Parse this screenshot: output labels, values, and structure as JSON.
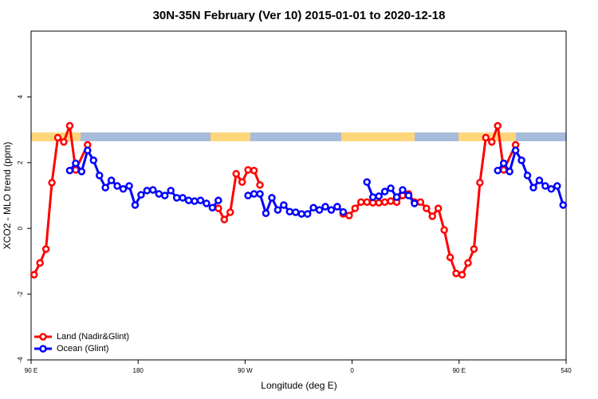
{
  "chart_data": {
    "type": "line",
    "title": "30N-35N February (Ver 10)   2015-01-01 to 2020-12-18",
    "x_label": "Longitude (deg E)",
    "y_label": "XCO2 - MLO trend (ppm)",
    "xlim": [
      90,
      540
    ],
    "ylim": [
      -4,
      6
    ],
    "xticks": [
      {
        "value": 90,
        "label": "90 E"
      },
      180,
      {
        "value": 270,
        "label": "90 W"
      },
      {
        "value": 360,
        "label": "0"
      },
      {
        "value": 450,
        "label": "90 E"
      },
      540
    ],
    "yticks": [
      -4,
      -2,
      0,
      2,
      4
    ],
    "legend": "bottom-left",
    "series": [
      {
        "name": "Land (Nadir&Glint)",
        "color": "#ff0000",
        "x": [
          92.5,
          97.5,
          102.5,
          107.5,
          112.5,
          117.5,
          122.5,
          127.5,
          137.5,
          142.5,
          247.5,
          252.5,
          257.5,
          262.5,
          267.5,
          272.5,
          277.5,
          282.5,
          287.5,
          352.5,
          357.5,
          362.5,
          367.5,
          372.5,
          377.5,
          382.5,
          387.5,
          392.5,
          397.5,
          402.5,
          407.5,
          412.5,
          417.5,
          422.5,
          427.5,
          432.5,
          437.5,
          442.5,
          447.5,
          452.5,
          457.5,
          462.5,
          467.5,
          472.5,
          477.5,
          482.5,
          487.5,
          497.5
        ],
        "values": [
          -1.41,
          -1.05,
          -0.63,
          1.39,
          2.76,
          2.63,
          3.12,
          1.78,
          2.54,
          null,
          0.61,
          0.27,
          0.49,
          1.66,
          1.41,
          1.78,
          1.76,
          1.32,
          null,
          0.44,
          0.39,
          0.61,
          0.8,
          0.8,
          0.78,
          0.78,
          0.8,
          0.83,
          0.8,
          1.0,
          1.05,
          0.8,
          0.8,
          0.61,
          0.37,
          0.61,
          -0.05,
          -0.88,
          -1.37,
          -1.41,
          -1.05,
          -0.63,
          1.39,
          2.76,
          2.63,
          3.12,
          1.78,
          2.54
        ]
      },
      {
        "name": "Ocean (Glint)",
        "color": "#0000ff",
        "x": [
          122.5,
          127.5,
          132.5,
          137.5,
          142.5,
          147.5,
          152.5,
          157.5,
          162.5,
          167.5,
          172.5,
          177.5,
          182.5,
          187.5,
          192.5,
          197.5,
          202.5,
          207.5,
          212.5,
          217.5,
          222.5,
          227.5,
          232.5,
          237.5,
          242.5,
          247.5,
          252.5,
          272.5,
          277.5,
          282.5,
          287.5,
          292.5,
          297.5,
          302.5,
          307.5,
          312.5,
          317.5,
          322.5,
          327.5,
          332.5,
          337.5,
          342.5,
          347.5,
          352.5,
          357.5,
          372.5,
          377.5,
          382.5,
          387.5,
          392.5,
          397.5,
          402.5,
          407.5,
          412.5,
          417.5,
          482.5,
          487.5,
          492.5,
          497.5,
          502.5,
          507.5,
          512.5,
          517.5,
          522.5,
          527.5,
          532.5,
          537.5
        ],
        "values": [
          1.76,
          1.98,
          1.73,
          2.37,
          2.07,
          1.61,
          1.24,
          1.46,
          1.29,
          1.2,
          1.29,
          0.71,
          1.02,
          1.15,
          1.17,
          1.05,
          1.0,
          1.15,
          0.93,
          0.93,
          0.85,
          0.83,
          0.85,
          0.76,
          0.63,
          0.85,
          null,
          1.0,
          1.05,
          1.05,
          0.46,
          0.93,
          0.56,
          0.71,
          0.51,
          0.49,
          0.44,
          0.44,
          0.63,
          0.56,
          0.66,
          0.56,
          0.66,
          0.5,
          null,
          1.41,
          0.95,
          0.98,
          1.12,
          1.22,
          0.95,
          1.17,
          1.0,
          0.76,
          null,
          1.76,
          1.98,
          1.73,
          2.37,
          2.07,
          1.61,
          1.24,
          1.46,
          1.29,
          1.2,
          1.29,
          0.71
        ]
      }
    ]
  }
}
